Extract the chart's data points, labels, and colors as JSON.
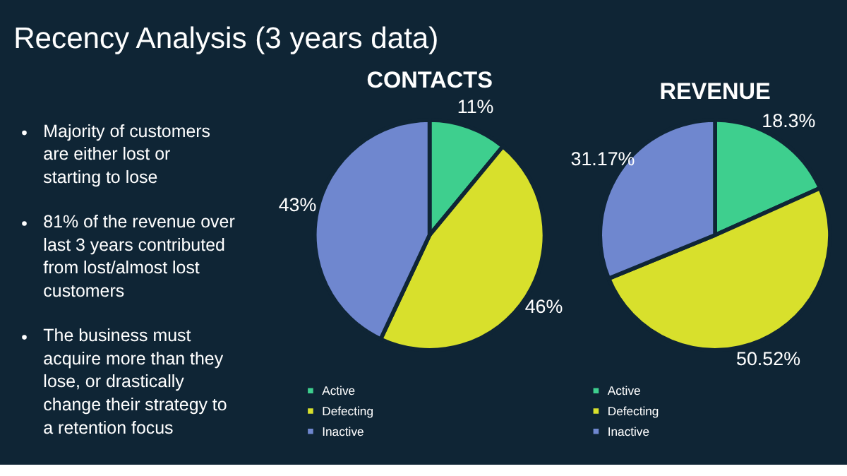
{
  "chart_data": [
    {
      "type": "other",
      "title": "Recency Analysis (3 years data)",
      "annotations": [
        "Majority of customers are either lost or starting to lose",
        "81% of the revenue over last 3 years contributed from lost/almost lost customers",
        "The business must acquire more than they lose, or drastically change their strategy to a retention focus"
      ]
    },
    {
      "type": "pie",
      "title": "CONTACTS",
      "categories": [
        "Active",
        "Defecting",
        "Inactive"
      ],
      "values": [
        11,
        46,
        43
      ],
      "value_labels": [
        "11%",
        "46%",
        "43%"
      ],
      "colors": [
        "#3ecf8e",
        "#d8e02c",
        "#6f87cf"
      ],
      "legend": "bottom left"
    },
    {
      "type": "pie",
      "title": "REVENUE",
      "categories": [
        "Active",
        "Defecting",
        "Inactive"
      ],
      "values": [
        18.3,
        50.52,
        31.17
      ],
      "value_labels": [
        "18.3%",
        "50.52%",
        "31.17%"
      ],
      "colors": [
        "#3ecf8e",
        "#d8e02c",
        "#6f87cf"
      ],
      "legend": "bottom left"
    }
  ]
}
